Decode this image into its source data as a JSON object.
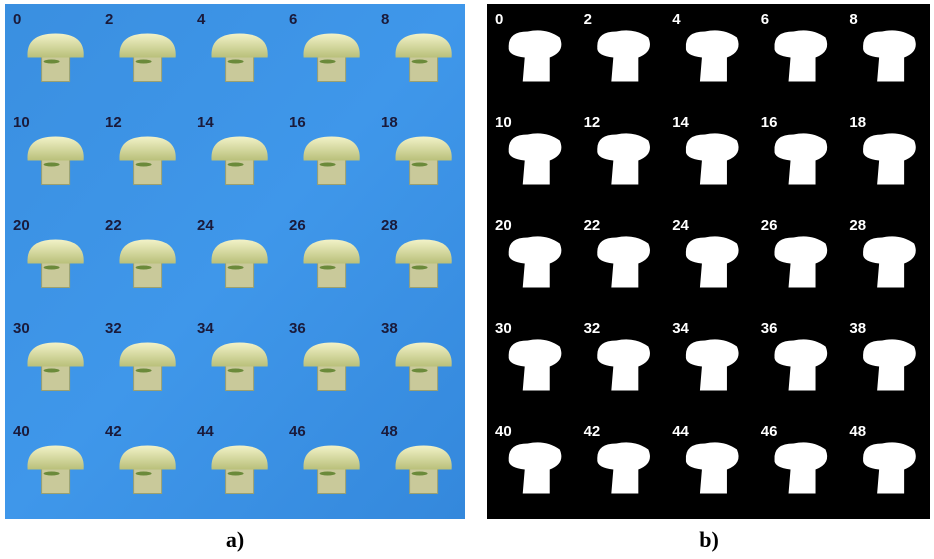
{
  "panels": [
    {
      "caption": "a)",
      "frames": [
        "0",
        "2",
        "4",
        "6",
        "8",
        "10",
        "12",
        "14",
        "16",
        "18",
        "20",
        "22",
        "24",
        "26",
        "28",
        "30",
        "32",
        "34",
        "36",
        "38",
        "40",
        "42",
        "44",
        "46",
        "48"
      ]
    },
    {
      "caption": "b)",
      "frames": [
        "0",
        "2",
        "4",
        "6",
        "8",
        "10",
        "12",
        "14",
        "16",
        "18",
        "20",
        "22",
        "24",
        "26",
        "28",
        "30",
        "32",
        "34",
        "36",
        "38",
        "40",
        "42",
        "44",
        "46",
        "48"
      ]
    }
  ]
}
